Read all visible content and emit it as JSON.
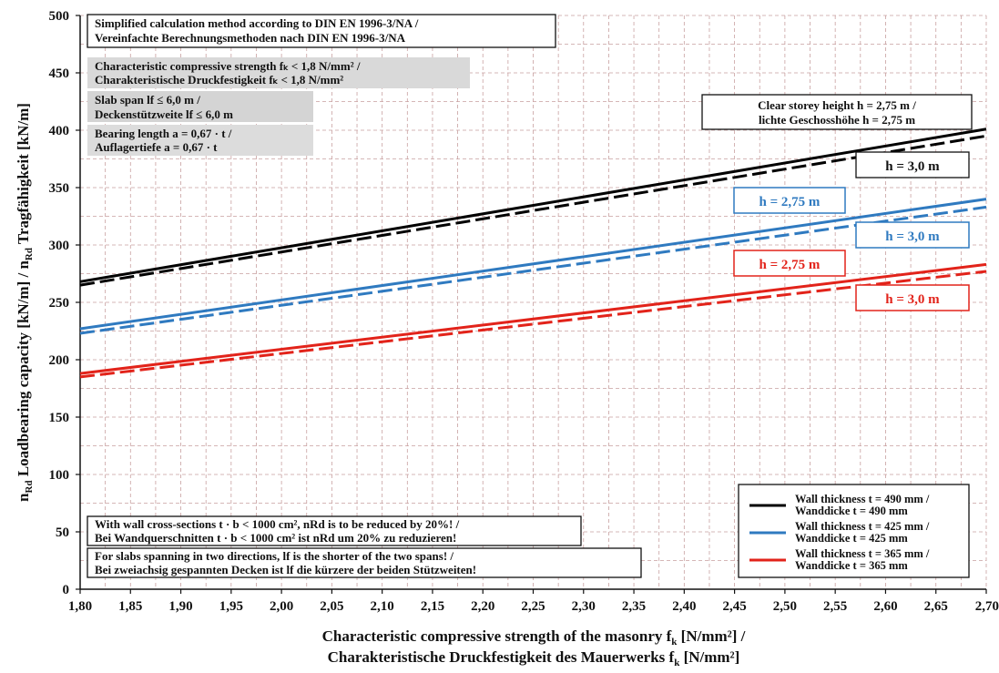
{
  "chart_data": {
    "type": "line",
    "x": [
      1.8,
      2.7
    ],
    "xlim": [
      1.8,
      2.7
    ],
    "ylim": [
      0,
      500
    ],
    "x_ticks": [
      "1,80",
      "1,85",
      "1,90",
      "1,95",
      "2,00",
      "2,05",
      "2,10",
      "2,15",
      "2,20",
      "2,25",
      "2,30",
      "2,35",
      "2,40",
      "2,45",
      "2,50",
      "2,55",
      "2,60",
      "2,65",
      "2,70"
    ],
    "y_ticks": [
      "0",
      "50",
      "100",
      "150",
      "200",
      "250",
      "300",
      "350",
      "400",
      "450",
      "500"
    ],
    "xlabel_line1": "Characteristic compressive strength of the masonry f",
    "xlabel_line1_sub": "k",
    "xlabel_line1_end": " [N/mm²] /",
    "xlabel_line2": "Charakteristische Druckfestigkeit des Mauerwerks f",
    "xlabel_line2_sub": "k",
    "xlabel_line2_end": " [N/mm²]",
    "ylabel_a": "n",
    "ylabel_a_sub": "Rd",
    "ylabel_b": " Loadbearing capacity [kN/m] / n",
    "ylabel_b_sub": "Rd",
    "ylabel_c": " Tragfähigkeit [kN/m]",
    "grid": true,
    "colors": {
      "t490": "#000000",
      "t425": "#2f7ac0",
      "t365": "#e2231a",
      "grid": "#c8a0a0"
    },
    "series": [
      {
        "thickness": "490",
        "height": "2,75",
        "dash": false,
        "values": [
          268,
          401
        ]
      },
      {
        "thickness": "490",
        "height": "3,0",
        "dash": true,
        "values": [
          265,
          395
        ]
      },
      {
        "thickness": "425",
        "height": "2,75",
        "dash": false,
        "values": [
          227,
          340
        ]
      },
      {
        "thickness": "425",
        "height": "3,0",
        "dash": true,
        "values": [
          223,
          333
        ]
      },
      {
        "thickness": "365",
        "height": "2,75",
        "dash": false,
        "values": [
          188,
          283
        ]
      },
      {
        "thickness": "365",
        "height": "3,0",
        "dash": true,
        "values": [
          185,
          277
        ]
      }
    ],
    "legend_placement": "bottom-right",
    "legend": [
      {
        "line1": "Wall thickness  t = 490 mm /",
        "line2": "Wanddicke         t = 490 mm",
        "color": "#000000"
      },
      {
        "line1": "Wall thickness  t = 425 mm /",
        "line2": "Wanddicke         t = 425 mm",
        "color": "#2f7ac0"
      },
      {
        "line1": "Wall thickness  t = 365 mm /",
        "line2": "Wanddicke         t = 365 mm",
        "color": "#e2231a"
      }
    ],
    "curve_labels": {
      "black_30": "h  = 3,0 m",
      "blue_275": "h  = 2,75 m",
      "blue_30": "h  = 3,0 m",
      "red_275": "h  = 2,75 m",
      "red_30": "h  = 3,0 m"
    },
    "annotations": {
      "method_1": "Simplified calculation method according to DIN EN 1996-3/NA /",
      "method_2": "Vereinfachte Berechnungsmethoden nach DIN EN 1996-3/NA",
      "strength_1": "Characteristic compressive strength fₖ < 1,8 N/mm² /",
      "strength_2": "Charakteristische Druckfestigkeit fₖ < 1,8 N/mm²",
      "span_1": "Slab span lf ≤ 6,0 m /",
      "span_2": "Deckenstützweite lf ≤ 6,0 m",
      "bearing_1": "Bearing length a = 0,67 · t /",
      "bearing_2": "Auflagertiefe a = 0,67 · t",
      "storey_1": "Clear storey height h = 2,75 m /",
      "storey_2": "lichte Geschosshöhe h = 2,75 m",
      "reduce_1": "With wall cross-sections t · b < 1000 cm², nRd is to be reduced by 20%! /",
      "reduce_2": "Bei Wandquerschnitten t · b < 1000 cm² ist nRd um 20% zu reduzieren!",
      "twoway_1": "For slabs spanning in two directions, lf is the shorter of the two spans! /",
      "twoway_2": "Bei zweiachsig gespannten Decken ist lf die kürzere der beiden Stützweiten!"
    }
  }
}
